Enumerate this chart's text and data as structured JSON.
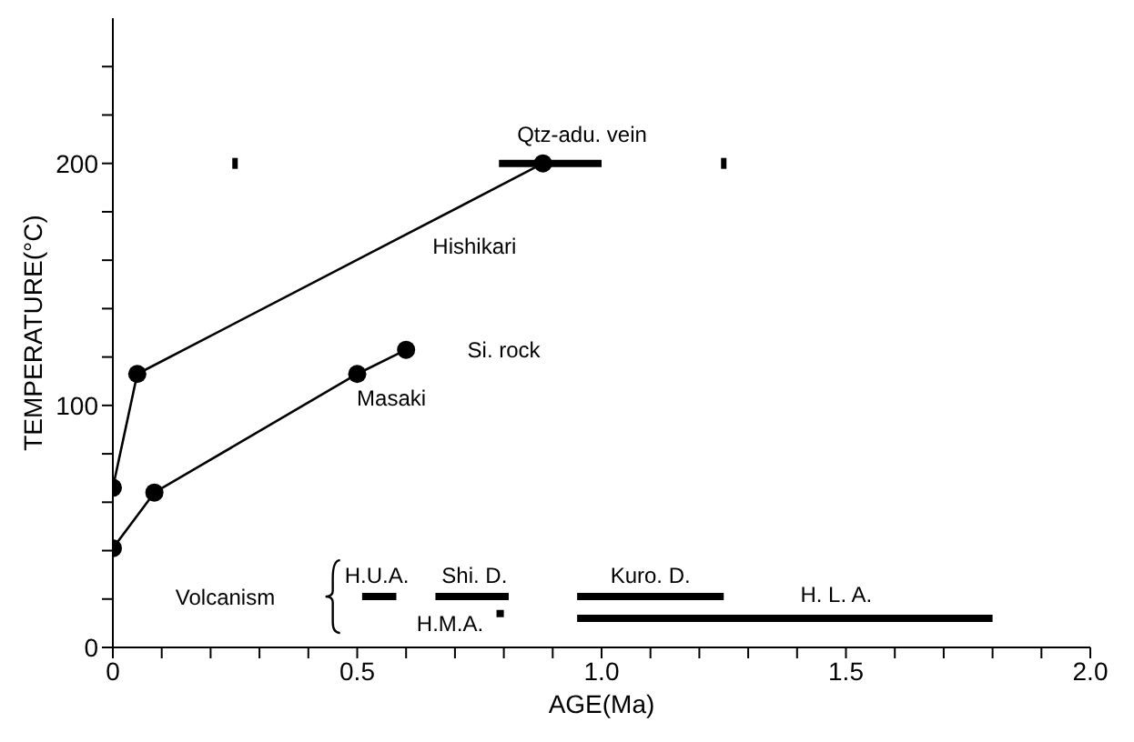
{
  "chart_data": {
    "type": "line",
    "xlabel": "AGE(Ma)",
    "ylabel": "TEMPERATURE(°C)",
    "xlim": [
      0,
      2.0
    ],
    "ylim": [
      0,
      260
    ],
    "xticks": [
      0,
      {
        "value": 0.1,
        "label": null
      },
      {
        "value": 0.2,
        "label": null
      },
      {
        "value": 0.3,
        "label": null
      },
      {
        "value": 0.4,
        "label": null
      },
      {
        "value": 0.5,
        "label": "0.5"
      },
      {
        "value": 0.6,
        "label": null
      },
      {
        "value": 0.7,
        "label": null
      },
      {
        "value": 0.8,
        "label": null
      },
      {
        "value": 0.9,
        "label": null
      },
      {
        "value": 1.0,
        "label": "1.0"
      },
      {
        "value": 1.1,
        "label": null
      },
      {
        "value": 1.2,
        "label": null
      },
      {
        "value": 1.3,
        "label": null
      },
      {
        "value": 1.4,
        "label": null
      },
      {
        "value": 1.5,
        "label": "1.5"
      },
      {
        "value": 1.6,
        "label": null
      },
      {
        "value": 1.7,
        "label": null
      },
      {
        "value": 1.8,
        "label": null
      },
      {
        "value": 1.9,
        "label": null
      },
      {
        "value": 2.0,
        "label": "2.0"
      }
    ],
    "yticks": [
      0,
      {
        "value": 20,
        "label": null
      },
      {
        "value": 40,
        "label": null
      },
      {
        "value": 60,
        "label": null
      },
      {
        "value": 80,
        "label": null
      },
      100,
      {
        "value": 120,
        "label": null
      },
      {
        "value": 140,
        "label": null
      },
      {
        "value": 160,
        "label": null
      },
      {
        "value": 180,
        "label": null
      },
      200,
      {
        "value": 220,
        "label": null
      },
      {
        "value": 240,
        "label": null
      }
    ],
    "grid": false,
    "legend": false,
    "marker": "circle",
    "line_style": "solid",
    "series": [
      {
        "color": "#000000",
        "x": [
          0,
          0.05,
          0.88
        ],
        "values": [
          66,
          113,
          200
        ]
      },
      {
        "color": "#000000",
        "x": [
          0,
          0.085,
          0.5,
          0.6
        ],
        "values": [
          41,
          64,
          113,
          123
        ]
      },
      {
        "marker": "none",
        "color": "#000000",
        "x": [
          0.79,
          1.0
        ],
        "values": [
          200,
          200
        ]
      },
      {
        "type": "scatter",
        "marker": "square",
        "color": "#000000",
        "x": [
          0.25,
          1.25
        ],
        "values": [
          200,
          200
        ]
      },
      {
        "marker": "none",
        "color": "#000000",
        "x": [
          0.51,
          0.58
        ],
        "values": [
          21,
          21
        ]
      },
      {
        "marker": "none",
        "color": "#000000",
        "x": [
          0.66,
          0.81
        ],
        "values": [
          21,
          21
        ]
      },
      {
        "marker": "none",
        "color": "#000000",
        "x": [
          0.785,
          0.8
        ],
        "values": [
          14,
          14
        ]
      },
      {
        "marker": "none",
        "color": "#000000",
        "x": [
          0.95,
          1.25
        ],
        "values": [
          21,
          21
        ]
      },
      {
        "marker": "none",
        "color": "#000000",
        "x": [
          0.95,
          1.8
        ],
        "values": [
          12,
          12
        ]
      }
    ],
    "annotations": [
      "Qtz-adu. vein",
      "Hishikari",
      "Si. rock",
      "Masaki",
      "Volcanism",
      "H.U.A.",
      "Shi. D.",
      "H.M.A.",
      "Kuro. D.",
      "H. L. A."
    ]
  }
}
